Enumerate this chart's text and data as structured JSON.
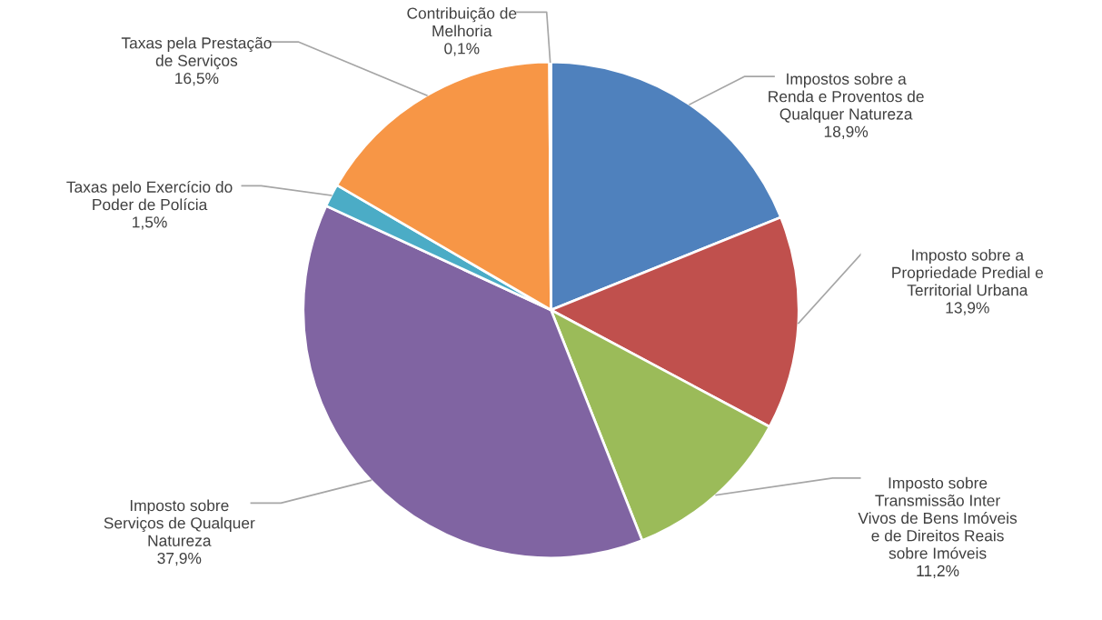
{
  "chart_data": {
    "type": "pie",
    "categories": [
      "Impostos sobre a\nRenda e Proventos de\nQualquer Natureza",
      "Imposto sobre a\nPropriedade Predial e\nTerritorial Urbana",
      "Imposto sobre\nTransmissão Inter\nVivos de Bens Imóveis\ne de Direitos Reais\nsobre Imóveis",
      "Imposto sobre\nServiços de Qualquer\nNatureza",
      "Taxas pelo Exercício do\nPoder de Polícia",
      "Taxas pela Prestação\nde Serviços",
      "Contribuição de\nMelhoria"
    ],
    "values": [
      18.9,
      13.9,
      11.2,
      37.9,
      1.5,
      16.5,
      0.1
    ],
    "value_labels": [
      "18,9%",
      "13,9%",
      "11,2%",
      "37,9%",
      "1,5%",
      "16,5%",
      "0,1%"
    ],
    "colors": [
      "#4f81bd",
      "#c0504d",
      "#9bbb59",
      "#8064a2",
      "#4bacc6",
      "#f79646",
      "#2c4d75"
    ],
    "legend": false
  }
}
